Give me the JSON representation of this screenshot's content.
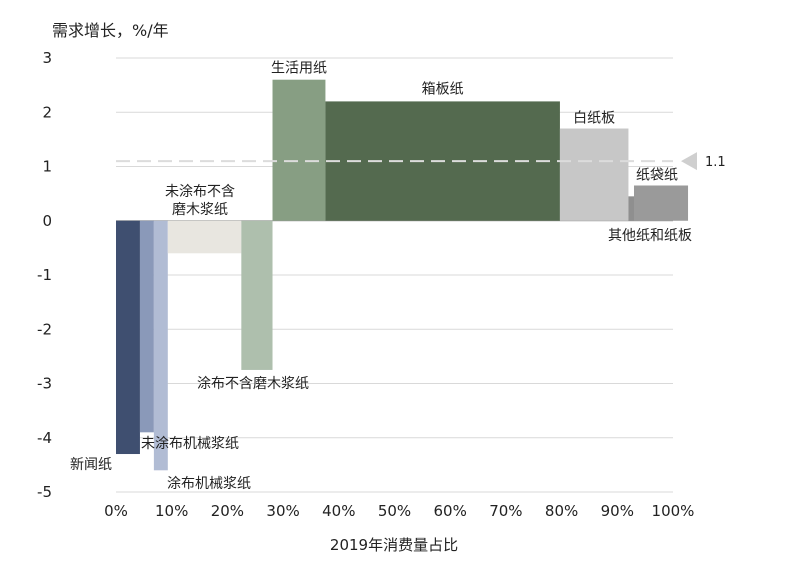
{
  "chart_data": {
    "type": "bar",
    "subtype": "variable-width (marimekko)",
    "ylabel": "需求增长，%/年",
    "xlabel": "2019年消费量占比",
    "ylim": [
      -5,
      3
    ],
    "xlim": [
      0,
      100
    ],
    "yticks": [
      "3",
      "2",
      "1",
      "0",
      "-1",
      "-2",
      "-3",
      "-4",
      "-5"
    ],
    "xticks": [
      "0%",
      "10%",
      "20%",
      "30%",
      "40%",
      "50%",
      "60%",
      "70%",
      "80%",
      "90%",
      "100%"
    ],
    "grid": true,
    "reference_line": {
      "value": 1.1,
      "label": "1.1",
      "style": "dashed"
    },
    "segments": [
      {
        "label": "新闻纸",
        "x_start": 0,
        "x_end": 4.3,
        "value": -4.3,
        "color": "#3f4f70"
      },
      {
        "label": "未涂布机械浆纸",
        "x_start": 4.3,
        "x_end": 6.8,
        "value": -3.9,
        "color": "#8a99b9"
      },
      {
        "label": "涂布机械浆纸",
        "x_start": 6.8,
        "x_end": 9.3,
        "value": -4.6,
        "color": "#b1bcd4"
      },
      {
        "label": "未涂布不含磨木浆纸",
        "x_start": 9.3,
        "x_end": 22.5,
        "value": -0.6,
        "color": "#e8e6e0"
      },
      {
        "label": "涂布不含磨木浆纸",
        "x_start": 22.5,
        "x_end": 28.1,
        "value": -2.75,
        "color": "#aebfad"
      },
      {
        "label": "生活用纸",
        "x_start": 28.1,
        "x_end": 37.6,
        "value": 2.6,
        "color": "#879e83"
      },
      {
        "label": "箱板纸",
        "x_start": 37.6,
        "x_end": 79.7,
        "value": 2.2,
        "color": "#546a4f"
      },
      {
        "label": "白纸板",
        "x_start": 79.7,
        "x_end": 92.0,
        "value": 1.7,
        "color": "#c7c7c7"
      },
      {
        "label": "其他纸和纸板",
        "x_start": 92.0,
        "x_end": 93.0,
        "value": 0.45,
        "color": "#8f8f8f"
      },
      {
        "label": "纸袋纸",
        "x_start": 93.0,
        "x_end": 102.7,
        "value": 0.65,
        "color": "#9a9a9a"
      }
    ]
  }
}
